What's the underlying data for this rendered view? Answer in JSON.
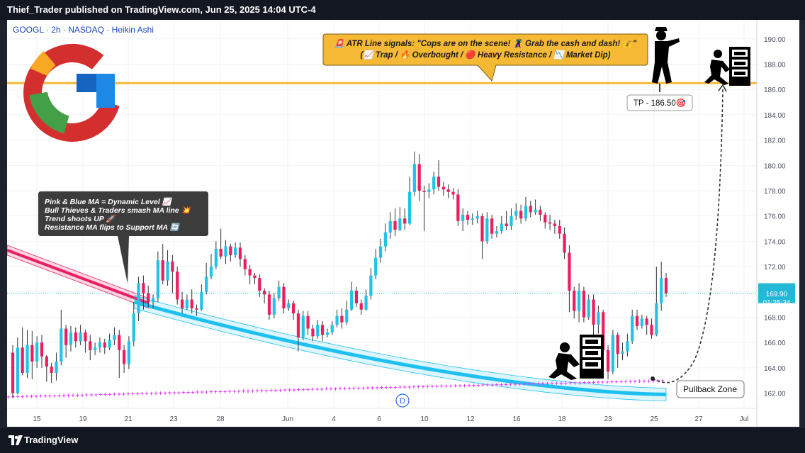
{
  "header": {
    "title": "Thief_Trader published on TradingView.com, Jun 25, 2025 14:04 UTC-4"
  },
  "footer": {
    "brand": "TradingView"
  },
  "symbol_label": "GOOGL · 2h · NASDAQ · Heikin Ashi",
  "annotations": {
    "atr_line1": "🚨 ATR Line signals: \"Cops are on the scene! 🦹 Grab the cash and dash! 💰\"",
    "atr_line2": "(📈 Trap / 🔥 Overbought / 🔴 Heavy Resistance / 📉 Market Dip)",
    "ma_note": [
      "Pink & Blue MA = Dynamic Level 📈",
      "Bull Thieves & Traders smash MA line 💥",
      "Trend shoots UP 🚀",
      "Resistance MA flips to Support MA 🔄"
    ],
    "tp_label": "TP - 186.50🎯",
    "pullback_label": "Pullback Zone",
    "dividend_marker": "D"
  },
  "price_tag": {
    "price": "169.90",
    "countdown": "01:25:34"
  },
  "colors": {
    "up": "#22c3e6",
    "down": "#ec1e5e",
    "tp_line": "#f5b935",
    "pink_ma": "#e91e63",
    "blue_ma": "#1ec0f0",
    "dots": "#e040fb"
  },
  "chart_data": {
    "type": "candlestick",
    "subtype": "heikin-ashi",
    "ylim": [
      160.8,
      191.5
    ],
    "y_ticks": [
      162,
      164,
      166,
      168,
      170,
      172,
      174,
      176,
      178,
      180,
      182,
      184,
      186,
      188,
      190
    ],
    "y_tick_labels": [
      "162.00",
      "164.00",
      "166.00",
      "168.00",
      "170.00",
      "172.00",
      "174.00",
      "176.00",
      "178.00",
      "180.00",
      "182.00",
      "184.00",
      "186.00",
      "188.00",
      "190.00"
    ],
    "x_ticks": [
      "15",
      "19",
      "21",
      "23",
      "28",
      "Jun",
      "4",
      "6",
      "10",
      "12",
      "16",
      "18",
      "23",
      "25",
      "27",
      "Jul"
    ],
    "tp_level": 186.5,
    "last_price": 169.9,
    "candles": [
      [
        165.2,
        162.0,
        165.8,
        161.6
      ],
      [
        162.0,
        165.6,
        166.4,
        161.9
      ],
      [
        165.6,
        163.6,
        167.2,
        163.4
      ],
      [
        163.6,
        165.8,
        167.0,
        163.2
      ],
      [
        165.8,
        164.5,
        166.9,
        163.1
      ],
      [
        164.5,
        166.0,
        166.5,
        164.0
      ],
      [
        166.0,
        164.9,
        166.6,
        164.0
      ],
      [
        164.9,
        164.1,
        165.0,
        162.9
      ],
      [
        164.1,
        163.6,
        164.4,
        162.8
      ],
      [
        163.6,
        164.5,
        165.2,
        163.0
      ],
      [
        164.5,
        167.1,
        168.6,
        164.2
      ],
      [
        167.1,
        165.8,
        167.4,
        164.8
      ],
      [
        165.8,
        166.8,
        167.3,
        165.3
      ],
      [
        166.8,
        166.1,
        167.2,
        165.6
      ],
      [
        166.1,
        166.8,
        167.4,
        165.8
      ],
      [
        166.8,
        166.1,
        167.0,
        165.2
      ],
      [
        166.1,
        165.4,
        166.6,
        164.6
      ],
      [
        165.4,
        165.6,
        166.0,
        165.0
      ],
      [
        165.6,
        166.0,
        166.4,
        165.2
      ],
      [
        166.0,
        165.6,
        166.3,
        165.1
      ],
      [
        165.6,
        166.2,
        166.7,
        165.4
      ],
      [
        166.2,
        166.6,
        167.2,
        165.8
      ],
      [
        166.6,
        165.4,
        167.0,
        163.2
      ],
      [
        165.4,
        164.3,
        165.8,
        163.6
      ],
      [
        164.3,
        166.1,
        166.5,
        163.9
      ],
      [
        166.1,
        168.3,
        169.2,
        165.7
      ],
      [
        168.3,
        170.7,
        171.2,
        167.7
      ],
      [
        170.7,
        169.9,
        171.3,
        168.6
      ],
      [
        169.9,
        169.2,
        170.5,
        168.8
      ],
      [
        169.2,
        169.5,
        169.8,
        168.7
      ],
      [
        169.5,
        172.5,
        173.2,
        169.2
      ],
      [
        172.5,
        170.9,
        173.8,
        170.6
      ],
      [
        170.9,
        172.4,
        173.3,
        170.5
      ],
      [
        172.4,
        171.6,
        172.9,
        169.9
      ],
      [
        171.6,
        169.4,
        172.0,
        169.0
      ],
      [
        169.4,
        168.7,
        170.0,
        168.3
      ],
      [
        168.7,
        169.4,
        169.8,
        168.6
      ],
      [
        169.4,
        168.7,
        170.2,
        168.3
      ],
      [
        168.7,
        168.6,
        169.0,
        168.1
      ],
      [
        168.6,
        170.0,
        170.6,
        168.5
      ],
      [
        170.0,
        171.2,
        172.3,
        169.8
      ],
      [
        171.2,
        172.0,
        173.0,
        171.0
      ],
      [
        172.0,
        173.4,
        174.0,
        171.8
      ],
      [
        173.4,
        172.8,
        175.0,
        172.6
      ],
      [
        172.8,
        173.6,
        174.1,
        172.2
      ],
      [
        173.6,
        172.9,
        173.8,
        172.4
      ],
      [
        172.9,
        173.5,
        173.9,
        172.7
      ],
      [
        173.5,
        172.6,
        173.9,
        172.0
      ],
      [
        172.6,
        171.8,
        172.9,
        171.3
      ],
      [
        171.8,
        171.3,
        172.1,
        170.6
      ],
      [
        171.3,
        171.1,
        171.5,
        170.6
      ],
      [
        171.1,
        170.1,
        171.4,
        169.6
      ],
      [
        170.1,
        169.8,
        170.3,
        169.1
      ],
      [
        169.8,
        168.2,
        170.1,
        167.8
      ],
      [
        168.2,
        169.5,
        169.9,
        167.9
      ],
      [
        169.5,
        170.4,
        170.9,
        169.3
      ],
      [
        170.4,
        168.7,
        170.7,
        168.3
      ],
      [
        168.7,
        169.1,
        169.4,
        168.5
      ],
      [
        169.1,
        168.3,
        169.3,
        167.8
      ],
      [
        168.3,
        166.4,
        168.6,
        165.3
      ],
      [
        166.4,
        168.1,
        168.5,
        166.2
      ],
      [
        168.1,
        167.1,
        168.5,
        166.6
      ],
      [
        167.1,
        166.5,
        167.4,
        166.1
      ],
      [
        166.5,
        167.4,
        167.8,
        166.3
      ],
      [
        167.4,
        166.6,
        167.7,
        166.1
      ],
      [
        166.6,
        166.8,
        167.1,
        166.4
      ],
      [
        166.8,
        167.4,
        167.7,
        166.6
      ],
      [
        167.4,
        168.1,
        168.6,
        167.2
      ],
      [
        168.1,
        167.6,
        168.7,
        167.1
      ],
      [
        167.6,
        168.6,
        169.3,
        167.4
      ],
      [
        168.6,
        170.1,
        170.8,
        168.5
      ],
      [
        170.1,
        169.1,
        170.4,
        168.8
      ],
      [
        169.1,
        168.6,
        169.4,
        168.2
      ],
      [
        168.6,
        169.7,
        170.2,
        168.5
      ],
      [
        169.7,
        171.3,
        171.9,
        169.4
      ],
      [
        171.3,
        172.7,
        173.4,
        171.0
      ],
      [
        172.7,
        173.6,
        174.2,
        172.3
      ],
      [
        173.6,
        174.7,
        175.4,
        173.2
      ],
      [
        174.7,
        175.6,
        176.3,
        174.2
      ],
      [
        175.6,
        174.9,
        176.6,
        174.4
      ],
      [
        174.9,
        175.8,
        176.7,
        174.8
      ],
      [
        175.8,
        175.4,
        176.6,
        174.9
      ],
      [
        175.4,
        177.9,
        179.1,
        175.3
      ],
      [
        177.9,
        180.1,
        181.1,
        177.6
      ],
      [
        180.1,
        178.0,
        180.9,
        177.2
      ],
      [
        178.0,
        177.9,
        178.4,
        174.8
      ],
      [
        177.9,
        178.1,
        178.6,
        177.4
      ],
      [
        178.1,
        179.1,
        179.5,
        177.7
      ],
      [
        179.1,
        178.3,
        180.4,
        178.0
      ],
      [
        178.3,
        178.1,
        178.7,
        177.6
      ],
      [
        178.1,
        177.9,
        178.5,
        177.4
      ],
      [
        177.9,
        177.7,
        178.2,
        177.3
      ],
      [
        177.7,
        175.6,
        178.1,
        175.2
      ],
      [
        175.6,
        176.1,
        176.6,
        174.8
      ],
      [
        176.1,
        175.7,
        176.4,
        175.3
      ],
      [
        175.7,
        175.8,
        176.2,
        175.3
      ],
      [
        175.8,
        176.0,
        176.4,
        175.4
      ],
      [
        176.0,
        174.0,
        176.2,
        172.6
      ],
      [
        174.0,
        175.8,
        176.3,
        173.8
      ],
      [
        175.8,
        174.6,
        176.1,
        174.2
      ],
      [
        174.6,
        174.8,
        175.2,
        174.3
      ],
      [
        174.8,
        175.4,
        176.0,
        174.6
      ],
      [
        175.4,
        175.2,
        176.4,
        174.9
      ],
      [
        175.2,
        176.0,
        176.6,
        174.9
      ],
      [
        176.0,
        176.4,
        177.0,
        175.7
      ],
      [
        176.4,
        175.8,
        176.9,
        175.4
      ],
      [
        175.8,
        176.8,
        177.5,
        175.6
      ],
      [
        176.8,
        176.3,
        177.2,
        175.9
      ],
      [
        176.3,
        176.5,
        177.3,
        176.1
      ],
      [
        176.5,
        176.1,
        176.8,
        175.6
      ],
      [
        176.1,
        175.5,
        176.3,
        175.0
      ],
      [
        175.5,
        175.4,
        176.1,
        174.9
      ],
      [
        175.4,
        175.2,
        175.7,
        174.6
      ],
      [
        175.2,
        174.6,
        175.7,
        174.2
      ],
      [
        174.6,
        173.1,
        175.1,
        172.6
      ],
      [
        173.1,
        170.1,
        173.7,
        168.4
      ],
      [
        170.1,
        168.5,
        170.4,
        167.9
      ],
      [
        168.5,
        170.1,
        170.7,
        167.6
      ],
      [
        170.1,
        168.0,
        170.4,
        167.6
      ],
      [
        168.0,
        169.4,
        169.8,
        167.8
      ],
      [
        169.4,
        167.4,
        169.8,
        166.6
      ],
      [
        167.4,
        168.4,
        168.9,
        166.7
      ],
      [
        168.4,
        165.4,
        168.6,
        164.4
      ],
      [
        165.4,
        163.7,
        165.8,
        163.1
      ],
      [
        163.7,
        166.6,
        167.0,
        163.5
      ],
      [
        166.6,
        165.1,
        166.8,
        164.0
      ],
      [
        165.1,
        165.3,
        166.0,
        164.6
      ],
      [
        165.3,
        166.1,
        166.7,
        164.9
      ],
      [
        166.1,
        168.1,
        168.6,
        165.9
      ],
      [
        168.1,
        167.3,
        168.6,
        167.0
      ],
      [
        167.3,
        167.9,
        168.2,
        167.1
      ],
      [
        167.9,
        167.4,
        168.1,
        166.6
      ],
      [
        167.4,
        166.6,
        167.9,
        166.3
      ],
      [
        166.6,
        169.1,
        172.0,
        166.5
      ],
      [
        169.1,
        171.1,
        172.4,
        168.5
      ],
      [
        171.1,
        169.9,
        171.5,
        169.6
      ]
    ]
  }
}
